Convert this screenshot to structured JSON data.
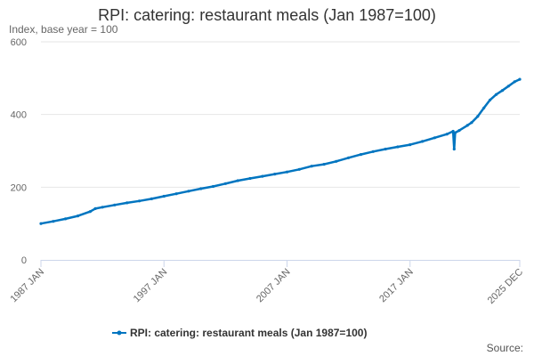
{
  "chart_data": {
    "type": "line",
    "title": "RPI: catering: restaurant meals (Jan 1987=100)",
    "subtitle": "Index, base year = 100",
    "source_label": "Source:",
    "color": "#0075c0",
    "grid": true,
    "ylim": [
      0,
      600
    ],
    "yticks": [
      0,
      200,
      400,
      600
    ],
    "x_range": [
      "1987 JAN",
      "2025 DEC"
    ],
    "xticks": [
      "1987 JAN",
      "1997 JAN",
      "2007 JAN",
      "2017 JAN",
      "2025 DEC"
    ],
    "series": [
      {
        "name": "RPI: catering: restaurant meals (Jan 1987=100)",
        "points": [
          {
            "x": "1987 JAN",
            "y": 100
          },
          {
            "x": "1988 JAN",
            "y": 106
          },
          {
            "x": "1989 JAN",
            "y": 113
          },
          {
            "x": "1990 JAN",
            "y": 121
          },
          {
            "x": "1991 JAN",
            "y": 133
          },
          {
            "x": "1991 JUN",
            "y": 141
          },
          {
            "x": "1992 JAN",
            "y": 145
          },
          {
            "x": "1993 JAN",
            "y": 151
          },
          {
            "x": "1994 JAN",
            "y": 157
          },
          {
            "x": "1995 JAN",
            "y": 162
          },
          {
            "x": "1996 JAN",
            "y": 168
          },
          {
            "x": "1997 JAN",
            "y": 175
          },
          {
            "x": "1998 JAN",
            "y": 182
          },
          {
            "x": "1999 JAN",
            "y": 189
          },
          {
            "x": "2000 JAN",
            "y": 196
          },
          {
            "x": "2001 JAN",
            "y": 202
          },
          {
            "x": "2002 JAN",
            "y": 210
          },
          {
            "x": "2003 JAN",
            "y": 218
          },
          {
            "x": "2004 JAN",
            "y": 224
          },
          {
            "x": "2005 JAN",
            "y": 230
          },
          {
            "x": "2006 JAN",
            "y": 236
          },
          {
            "x": "2007 JAN",
            "y": 242
          },
          {
            "x": "2008 JAN",
            "y": 249
          },
          {
            "x": "2009 JAN",
            "y": 258
          },
          {
            "x": "2010 JAN",
            "y": 263
          },
          {
            "x": "2011 JAN",
            "y": 271
          },
          {
            "x": "2012 JAN",
            "y": 281
          },
          {
            "x": "2013 JAN",
            "y": 290
          },
          {
            "x": "2014 JAN",
            "y": 298
          },
          {
            "x": "2015 JAN",
            "y": 305
          },
          {
            "x": "2016 JAN",
            "y": 311
          },
          {
            "x": "2017 JAN",
            "y": 317
          },
          {
            "x": "2018 JAN",
            "y": 326
          },
          {
            "x": "2019 JAN",
            "y": 336
          },
          {
            "x": "2020 JAN",
            "y": 346
          },
          {
            "x": "2020 JUL",
            "y": 354
          },
          {
            "x": "2020 AUG",
            "y": 305
          },
          {
            "x": "2020 SEP",
            "y": 350
          },
          {
            "x": "2021 JAN",
            "y": 356
          },
          {
            "x": "2021 SEP",
            "y": 370
          },
          {
            "x": "2022 JAN",
            "y": 378
          },
          {
            "x": "2022 JUL",
            "y": 395
          },
          {
            "x": "2023 JAN",
            "y": 418
          },
          {
            "x": "2023 JUL",
            "y": 440
          },
          {
            "x": "2024 JAN",
            "y": 455
          },
          {
            "x": "2024 JUL",
            "y": 466
          },
          {
            "x": "2025 JAN",
            "y": 478
          },
          {
            "x": "2025 JUL",
            "y": 490
          },
          {
            "x": "2025 DEC",
            "y": 497
          }
        ]
      }
    ]
  }
}
